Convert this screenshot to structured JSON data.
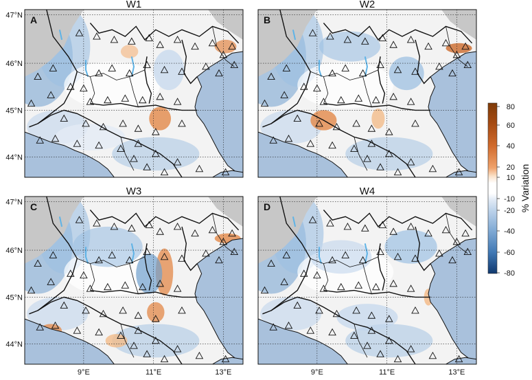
{
  "figure": {
    "panels": [
      {
        "id": "W1",
        "title": "W1",
        "letter": "A"
      },
      {
        "id": "W2",
        "title": "W2",
        "letter": "B"
      },
      {
        "id": "W3",
        "title": "W3",
        "letter": "C"
      },
      {
        "id": "W4",
        "title": "W4",
        "letter": "D"
      }
    ],
    "lat_ticks": [
      "47°N",
      "46°N",
      "45°N",
      "44°N"
    ],
    "lon_ticks": [
      "9°E",
      "11°E",
      "13°E"
    ],
    "colorbar": {
      "title": "% Variation",
      "ticks": [
        "80",
        "60",
        "40",
        "20",
        "10",
        "-10",
        "-20",
        "-40",
        "-60",
        "-80"
      ],
      "colors": [
        "#7f3b08",
        "#a64b13",
        "#cc6a2c",
        "#e38e52",
        "#f3bb8a",
        "#fbe3cb",
        "#ffffff",
        "#e3ebf5",
        "#c2d6ec",
        "#9dc0e2",
        "#6f9fcd",
        "#3f77b3",
        "#1b4d8c"
      ]
    },
    "map_colors": {
      "sea": "#a9c1dc",
      "land_base": "#f3f3f3",
      "alps": "#c7c7c7",
      "border": "#111111"
    }
  }
}
